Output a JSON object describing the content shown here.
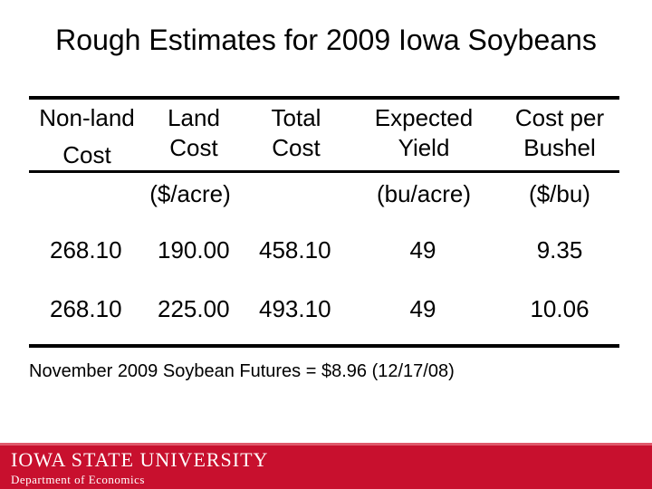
{
  "slide": {
    "title": "Rough Estimates for 2009 Iowa Soybeans",
    "note": "November 2009 Soybean Futures = $8.96 (12/17/08)"
  },
  "table": {
    "headers": [
      [
        "Non-land",
        "Cost"
      ],
      [
        "Land",
        "Cost"
      ],
      [
        "Total",
        "Cost"
      ],
      [
        "Expected",
        "Yield"
      ],
      [
        "Cost per",
        "Bushel"
      ]
    ],
    "units": [
      "($/acre)",
      "(bu/acre)",
      "($/bu)"
    ],
    "rows": [
      [
        "268.10",
        "190.00",
        "458.10",
        "49",
        "9.35"
      ],
      [
        "268.10",
        "225.00",
        "493.10",
        "49",
        "10.06"
      ]
    ]
  },
  "footer": {
    "logo": "IOWA STATE UNIVERSITY",
    "department": "Department of Economics"
  }
}
